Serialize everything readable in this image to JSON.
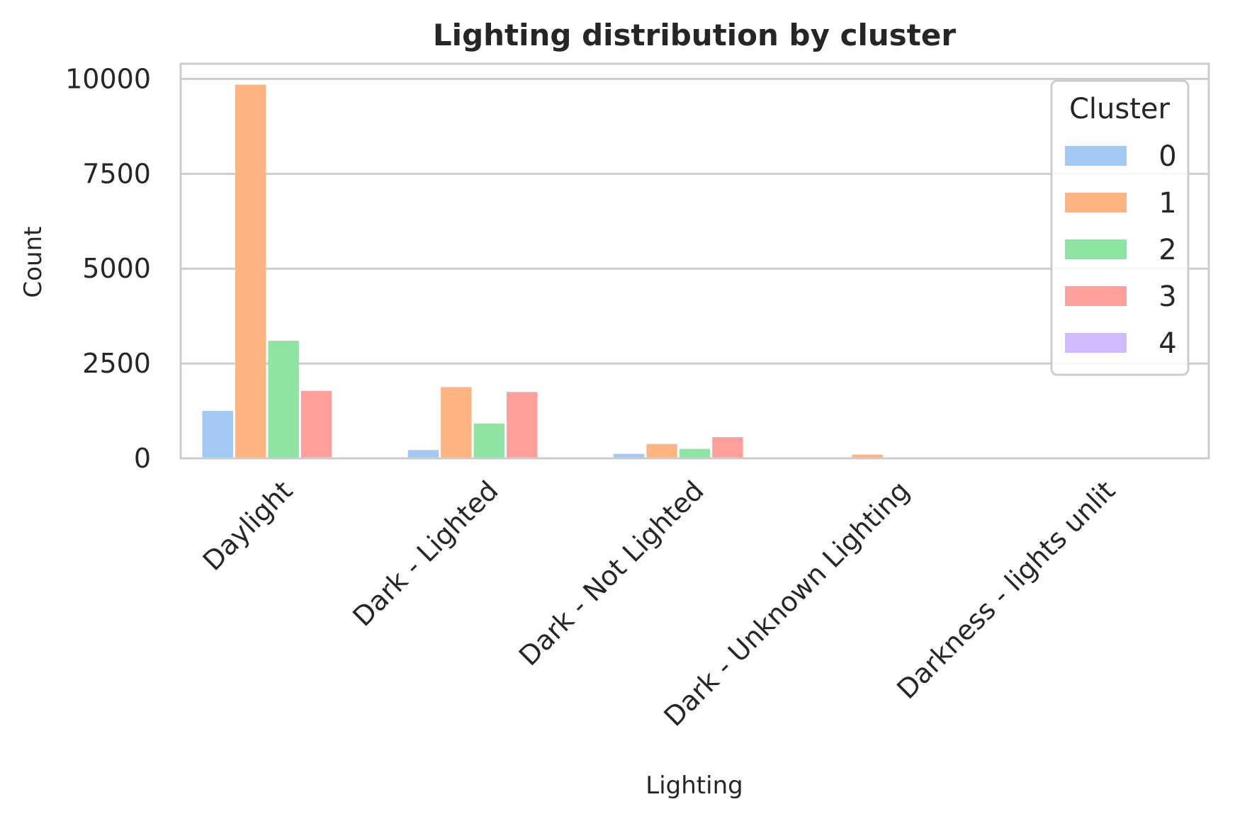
{
  "chart_data": {
    "type": "bar",
    "title": "Lighting distribution by cluster",
    "xlabel": "Lighting",
    "ylabel": "Count",
    "ylim": [
      0,
      10400
    ],
    "yticks": [
      0,
      2500,
      5000,
      7500,
      10000
    ],
    "grid": true,
    "categories": [
      "Daylight",
      "Dark - Lighted",
      "Dark - Not Lighted",
      "Dark - Unknown Lighting",
      "Darkness - lights unlit"
    ],
    "legend": {
      "title": "Cluster",
      "placement": "top-right"
    },
    "series": [
      {
        "name": "0",
        "color": "#a1c9f4",
        "values": [
          1250,
          220,
          120,
          5,
          0
        ]
      },
      {
        "name": "1",
        "color": "#ffb482",
        "values": [
          9850,
          1880,
          380,
          100,
          0
        ]
      },
      {
        "name": "2",
        "color": "#8de5a1",
        "values": [
          3100,
          920,
          250,
          5,
          0
        ]
      },
      {
        "name": "3",
        "color": "#ff9f9b",
        "values": [
          1780,
          1750,
          560,
          5,
          0
        ]
      },
      {
        "name": "4",
        "color": "#d0bbff",
        "values": [
          5,
          5,
          5,
          0,
          0
        ]
      }
    ]
  }
}
